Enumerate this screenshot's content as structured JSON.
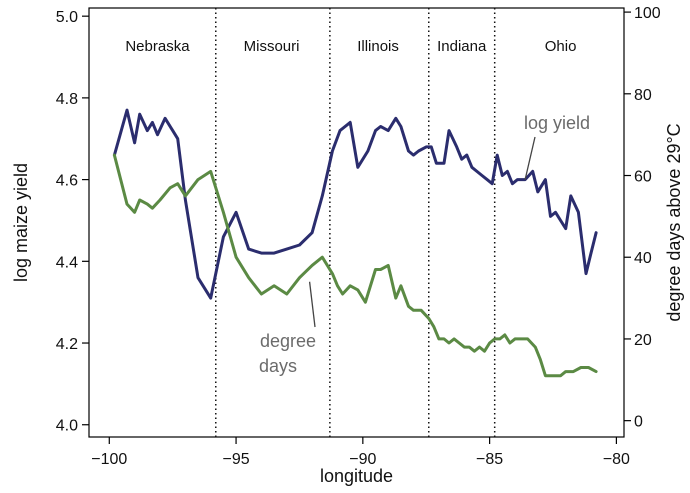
{
  "chart_data": {
    "type": "line",
    "title": "",
    "xlabel": "longitude",
    "ylabel_left": "log maize yield",
    "ylabel_right": "degree days above 29°C",
    "xlim": [
      -100.8,
      -79.7
    ],
    "ylim_left": [
      3.97,
      5.02
    ],
    "ylim_right": [
      -4,
      101
    ],
    "x_ticks": [
      -100,
      -95,
      -90,
      -85,
      -80
    ],
    "x_tick_labels": [
      "−100",
      "−95",
      "−90",
      "−85",
      "−80"
    ],
    "y_left_ticks": [
      4.0,
      4.2,
      4.4,
      4.6,
      4.8,
      5.0
    ],
    "y_left_tick_labels": [
      "4.0",
      "4.2",
      "4.4",
      "4.6",
      "4.8",
      "5.0"
    ],
    "y_right_ticks": [
      0,
      20,
      40,
      60,
      80,
      100
    ],
    "y_right_tick_labels": [
      "0",
      "20",
      "40",
      "60",
      "80",
      "100"
    ],
    "grid": false,
    "legend": "none",
    "state_boundaries": [
      -95.8,
      -91.3,
      -87.4,
      -84.8
    ],
    "regions": [
      {
        "label": "Nebraska",
        "x_center": -98.1
      },
      {
        "label": "Missouri",
        "x_center": -93.6
      },
      {
        "label": "Illinois",
        "x_center": -89.4
      },
      {
        "label": "Indiana",
        "x_center": -86.1
      },
      {
        "label": "Ohio",
        "x_center": -82.2
      }
    ],
    "series": [
      {
        "name": "log yield",
        "axis": "left",
        "color": "#2b2d6e",
        "x": [
          -99.8,
          -99.3,
          -99.0,
          -98.8,
          -98.5,
          -98.3,
          -98.1,
          -97.8,
          -97.5,
          -97.3,
          -97.0,
          -96.5,
          -96.0,
          -95.5,
          -95.0,
          -94.5,
          -94.0,
          -93.5,
          -93.0,
          -92.5,
          -92.0,
          -91.6,
          -91.2,
          -90.9,
          -90.5,
          -90.2,
          -89.8,
          -89.5,
          -89.3,
          -89.0,
          -88.7,
          -88.5,
          -88.2,
          -88.0,
          -87.8,
          -87.5,
          -87.3,
          -87.1,
          -86.8,
          -86.6,
          -86.3,
          -86.1,
          -85.9,
          -85.7,
          -85.5,
          -85.3,
          -85.1,
          -84.9,
          -84.7,
          -84.5,
          -84.3,
          -84.1,
          -83.9,
          -83.6,
          -83.3,
          -83.1,
          -82.8,
          -82.6,
          -82.4,
          -82.2,
          -82.0,
          -81.8,
          -81.5,
          -81.2,
          -81.0,
          -80.8
        ],
        "values": [
          4.66,
          4.77,
          4.69,
          4.76,
          4.72,
          4.74,
          4.71,
          4.75,
          4.72,
          4.7,
          4.55,
          4.36,
          4.31,
          4.46,
          4.52,
          4.43,
          4.42,
          4.42,
          4.43,
          4.44,
          4.47,
          4.56,
          4.67,
          4.72,
          4.74,
          4.63,
          4.67,
          4.72,
          4.73,
          4.72,
          4.75,
          4.73,
          4.67,
          4.66,
          4.67,
          4.68,
          4.68,
          4.64,
          4.64,
          4.72,
          4.68,
          4.65,
          4.66,
          4.63,
          4.62,
          4.61,
          4.6,
          4.59,
          4.66,
          4.61,
          4.62,
          4.59,
          4.6,
          4.6,
          4.62,
          4.57,
          4.6,
          4.51,
          4.52,
          4.5,
          4.48,
          4.56,
          4.52,
          4.37,
          4.42,
          4.47
        ]
      },
      {
        "name": "degree days",
        "axis": "right",
        "color": "#5b8a44",
        "x": [
          -99.8,
          -99.3,
          -99.0,
          -98.8,
          -98.5,
          -98.3,
          -98.0,
          -97.6,
          -97.3,
          -97.0,
          -96.5,
          -96.0,
          -95.5,
          -95.0,
          -94.5,
          -94.0,
          -93.5,
          -93.0,
          -92.5,
          -92.0,
          -91.6,
          -91.2,
          -91.0,
          -90.8,
          -90.5,
          -90.2,
          -89.9,
          -89.5,
          -89.3,
          -89.0,
          -88.7,
          -88.5,
          -88.2,
          -88.0,
          -87.7,
          -87.4,
          -87.2,
          -87.0,
          -86.8,
          -86.6,
          -86.4,
          -86.2,
          -86.0,
          -85.8,
          -85.6,
          -85.4,
          -85.2,
          -85.0,
          -84.8,
          -84.6,
          -84.4,
          -84.2,
          -84.0,
          -83.8,
          -83.5,
          -83.2,
          -83.0,
          -82.8,
          -82.5,
          -82.2,
          -82.0,
          -81.7,
          -81.4,
          -81.1,
          -80.8
        ],
        "values": [
          65,
          53,
          51,
          54,
          53,
          52,
          54,
          57,
          58,
          55,
          59,
          61,
          51,
          40,
          35,
          31,
          33,
          31,
          35,
          38,
          40,
          36,
          33,
          31,
          33,
          32,
          29,
          37,
          37,
          38,
          30,
          33,
          28,
          27,
          27,
          25,
          23,
          20,
          20,
          19,
          20,
          19,
          18,
          18,
          17,
          18,
          17,
          19,
          20,
          20,
          21,
          19,
          20,
          20,
          20,
          18,
          15,
          11,
          11,
          11,
          12,
          12,
          13,
          13,
          12
        ]
      }
    ],
    "annotations": [
      {
        "text": "log yield",
        "series": "log yield",
        "x": -83.6,
        "y": 4.6
      },
      {
        "text": "degree",
        "series": "degree days",
        "x": -92.1,
        "y": 34
      },
      {
        "text": "days",
        "series": "degree days",
        "x": -92.1,
        "y": 34
      }
    ]
  }
}
